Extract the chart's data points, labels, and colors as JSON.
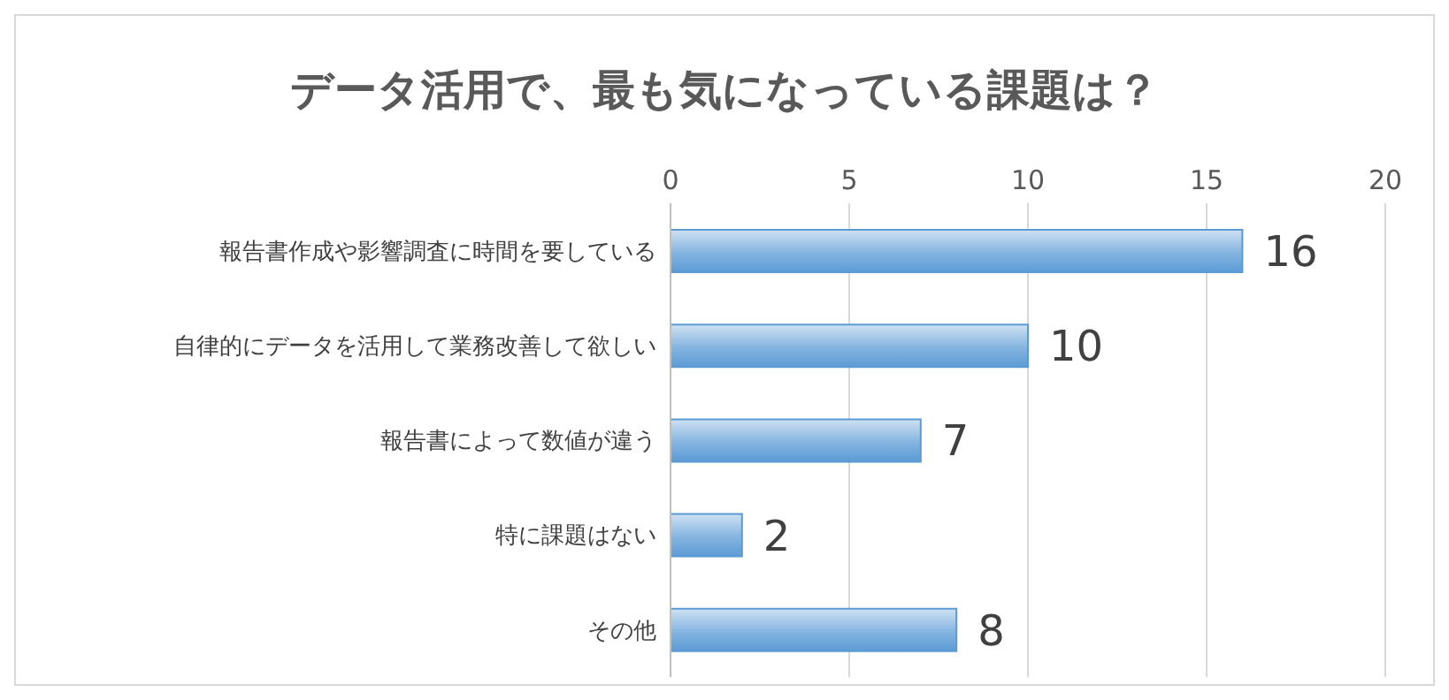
{
  "chart_data": {
    "type": "bar",
    "orientation": "horizontal",
    "title": "データ活用で、最も気になっている課題は？",
    "categories": [
      "報告書作成や影響調査に時間を要している",
      "自律的にデータを活用して業務改善して欲しい",
      "報告書によって数値が違う",
      "特に課題はない",
      "その他"
    ],
    "values": [
      16,
      10,
      7,
      2,
      8
    ],
    "color": "#5b9bd5",
    "xlim": [
      0,
      20
    ],
    "xticks": [
      0,
      5,
      10,
      15,
      20
    ],
    "grid": "x",
    "data_labels": true
  }
}
